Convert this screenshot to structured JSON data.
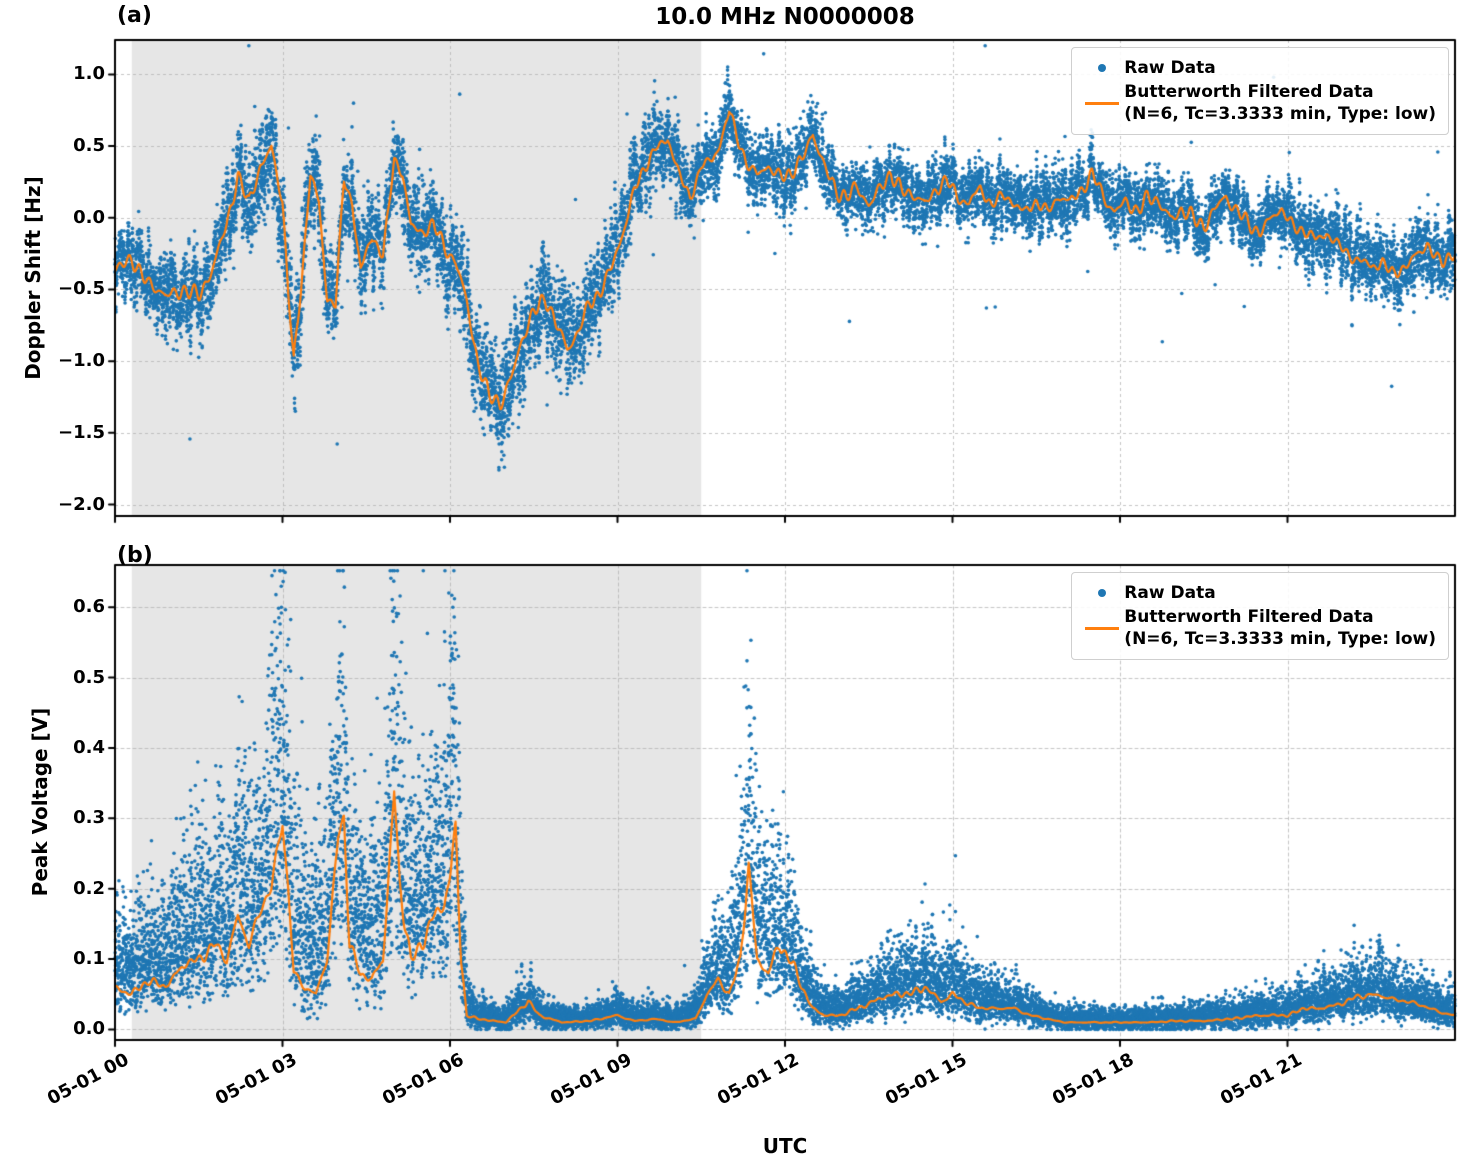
{
  "figure": {
    "title": "10.0 MHz N0000008",
    "xlabel": "UTC",
    "colors": {
      "raw": "#1f77b4",
      "filtered": "#ff7f0e",
      "shade": "#e6e6e6",
      "grid": "#b0b0b0",
      "spine": "#000000"
    }
  },
  "legend": {
    "raw": "Raw Data",
    "filtered_line1": "Butterworth Filtered Data",
    "filtered_line2": "(N=6, Tc=3.3333 min, Type: low)"
  },
  "panels": [
    {
      "corner_label": "(a)",
      "ylabel": "Doppler Shift [Hz]"
    },
    {
      "corner_label": "(b)",
      "ylabel": "Peak Voltage [V]"
    }
  ],
  "chart_data": [
    {
      "type": "scatter",
      "panel": "a",
      "title": "10.0 MHz N0000008",
      "xlabel": "UTC",
      "ylabel": "Doppler Shift [Hz]",
      "xlim_hours": [
        0,
        24
      ],
      "ylim": [
        -2.08,
        1.24
      ],
      "grid": true,
      "legend_position": "upper right",
      "yticks": {
        "values": [
          1.0,
          0.5,
          0.0,
          -0.5,
          -1.0,
          -1.5,
          -2.0
        ],
        "labels": [
          "1.0",
          "0.5",
          "0.0",
          "−0.5",
          "−1.0",
          "−1.5",
          "−2.0"
        ]
      },
      "x_tick_hours": [
        0,
        3,
        6,
        9,
        12,
        15,
        18,
        21
      ],
      "x_tick_labels": [
        "05-01 00",
        "05-01 03",
        "05-01 06",
        "05-01 09",
        "05-01 12",
        "05-01 15",
        "05-01 18",
        "05-01 21"
      ],
      "shaded_region_hours": [
        0.3,
        10.5
      ],
      "series": [
        {
          "name": "Raw Data",
          "type": "scatter",
          "color": "#1f77b4",
          "marker": "dot"
        },
        {
          "name": "Butterworth Filtered Data (N=6, Tc=3.3333 min, Type: low)",
          "type": "line",
          "color": "#ff7f0e",
          "x_hours": [
            0,
            0.3,
            0.6,
            0.9,
            1.2,
            1.5,
            1.8,
            2.0,
            2.2,
            2.4,
            2.6,
            2.8,
            3.0,
            3.1,
            3.2,
            3.35,
            3.5,
            3.65,
            3.8,
            3.95,
            4.1,
            4.25,
            4.4,
            4.6,
            4.8,
            5.0,
            5.15,
            5.3,
            5.5,
            5.7,
            5.9,
            6.1,
            6.3,
            6.5,
            6.7,
            6.9,
            7.1,
            7.3,
            7.5,
            7.7,
            7.9,
            8.1,
            8.3,
            8.5,
            8.7,
            8.9,
            9.1,
            9.3,
            9.5,
            9.7,
            9.9,
            10.1,
            10.3,
            10.5,
            10.7,
            10.9,
            11.0,
            11.1,
            11.3,
            11.5,
            11.7,
            11.9,
            12.1,
            12.3,
            12.5,
            12.7,
            12.9,
            13.1,
            13.3,
            13.5,
            13.7,
            13.9,
            14.1,
            14.3,
            14.5,
            14.7,
            14.9,
            15.1,
            15.3,
            15.5,
            15.7,
            15.9,
            16.1,
            16.3,
            16.5,
            16.7,
            16.9,
            17.1,
            17.3,
            17.5,
            17.7,
            17.9,
            18.1,
            18.3,
            18.5,
            18.7,
            18.9,
            19.1,
            19.3,
            19.5,
            19.7,
            19.9,
            20.1,
            20.3,
            20.5,
            20.7,
            20.9,
            21.1,
            21.3,
            21.5,
            21.7,
            21.9,
            22.1,
            22.3,
            22.5,
            22.7,
            22.9,
            23.1,
            23.3,
            23.5,
            23.7,
            24
          ],
          "y": [
            -0.35,
            -0.3,
            -0.45,
            -0.55,
            -0.5,
            -0.55,
            -0.3,
            -0.05,
            0.3,
            0.1,
            0.35,
            0.5,
            0.1,
            -0.5,
            -1.0,
            -0.4,
            0.3,
            0.1,
            -0.55,
            -0.6,
            0.25,
            0.1,
            -0.35,
            -0.15,
            -0.25,
            0.4,
            0.3,
            -0.05,
            -0.1,
            -0.05,
            -0.2,
            -0.3,
            -0.6,
            -1.0,
            -1.25,
            -1.3,
            -1.1,
            -0.85,
            -0.65,
            -0.55,
            -0.75,
            -0.9,
            -0.8,
            -0.6,
            -0.5,
            -0.35,
            -0.1,
            0.2,
            0.35,
            0.5,
            0.55,
            0.3,
            0.15,
            0.35,
            0.4,
            0.6,
            0.75,
            0.6,
            0.4,
            0.3,
            0.35,
            0.3,
            0.3,
            0.4,
            0.6,
            0.35,
            0.2,
            0.15,
            0.2,
            0.1,
            0.2,
            0.3,
            0.2,
            0.15,
            0.1,
            0.2,
            0.25,
            0.15,
            0.1,
            0.2,
            0.1,
            0.15,
            0.1,
            0.05,
            0.1,
            0.05,
            0.15,
            0.1,
            0.2,
            0.3,
            0.15,
            0.05,
            0.1,
            0.05,
            0.15,
            0.1,
            0.0,
            0.05,
            0.0,
            -0.05,
            0.05,
            0.15,
            0.05,
            -0.05,
            -0.1,
            0.0,
            0.05,
            -0.05,
            -0.1,
            -0.15,
            -0.1,
            -0.2,
            -0.25,
            -0.3,
            -0.35,
            -0.3,
            -0.4,
            -0.35,
            -0.25,
            -0.2,
            -0.3,
            -0.25
          ]
        }
      ],
      "raw_spread": {
        "x_hours": [
          0,
          1,
          2,
          3,
          4,
          5,
          6,
          7,
          8,
          9,
          10,
          11,
          12,
          13,
          14,
          15,
          16,
          17,
          18,
          19,
          20,
          21,
          22,
          23,
          24
        ],
        "std": [
          0.13,
          0.14,
          0.17,
          0.2,
          0.18,
          0.17,
          0.18,
          0.2,
          0.2,
          0.17,
          0.15,
          0.13,
          0.15,
          0.12,
          0.12,
          0.12,
          0.12,
          0.12,
          0.12,
          0.11,
          0.11,
          0.12,
          0.14,
          0.14,
          0.13
        ]
      }
    },
    {
      "type": "scatter",
      "panel": "b",
      "xlabel": "UTC",
      "ylabel": "Peak Voltage [V]",
      "xlim_hours": [
        0,
        24
      ],
      "ylim": [
        -0.015,
        0.66
      ],
      "grid": true,
      "legend_position": "upper right",
      "yticks": {
        "values": [
          0.6,
          0.5,
          0.4,
          0.3,
          0.2,
          0.1,
          0.0
        ],
        "labels": [
          "0.6",
          "0.5",
          "0.4",
          "0.3",
          "0.2",
          "0.1",
          "0.0"
        ]
      },
      "x_tick_hours": [
        0,
        3,
        6,
        9,
        12,
        15,
        18,
        21
      ],
      "x_tick_labels": [
        "05-01 00",
        "05-01 03",
        "05-01 06",
        "05-01 09",
        "05-01 12",
        "05-01 15",
        "05-01 18",
        "05-01 21"
      ],
      "shaded_region_hours": [
        0.3,
        10.5
      ],
      "series": [
        {
          "name": "Raw Data",
          "type": "scatter",
          "color": "#1f77b4",
          "marker": "dot"
        },
        {
          "name": "Butterworth Filtered Data (N=6, Tc=3.3333 min, Type: low)",
          "type": "line",
          "color": "#ff7f0e",
          "x_hours": [
            0,
            0.3,
            0.6,
            0.9,
            1.2,
            1.5,
            1.8,
            2.0,
            2.2,
            2.4,
            2.6,
            2.8,
            3.0,
            3.1,
            3.2,
            3.4,
            3.6,
            3.8,
            4.0,
            4.1,
            4.2,
            4.4,
            4.6,
            4.8,
            5.0,
            5.1,
            5.3,
            5.5,
            5.7,
            5.9,
            6.0,
            6.1,
            6.2,
            6.3,
            6.5,
            7.0,
            7.4,
            7.6,
            8.0,
            8.5,
            9.0,
            9.3,
            9.7,
            10.0,
            10.4,
            10.6,
            10.8,
            11.0,
            11.2,
            11.35,
            11.5,
            11.7,
            11.9,
            12.1,
            12.3,
            12.5,
            12.7,
            13.0,
            13.3,
            13.6,
            13.9,
            14.2,
            14.5,
            14.8,
            15.0,
            15.2,
            15.5,
            15.8,
            16.1,
            16.4,
            16.7,
            17.0,
            17.5,
            18.0,
            18.5,
            19.0,
            19.5,
            20.0,
            20.5,
            21.0,
            21.3,
            21.6,
            21.9,
            22.2,
            22.5,
            22.8,
            23.1,
            23.4,
            23.7,
            24
          ],
          "y": [
            0.06,
            0.05,
            0.07,
            0.06,
            0.09,
            0.1,
            0.12,
            0.1,
            0.16,
            0.12,
            0.17,
            0.2,
            0.3,
            0.2,
            0.08,
            0.06,
            0.05,
            0.1,
            0.28,
            0.3,
            0.12,
            0.08,
            0.07,
            0.1,
            0.34,
            0.2,
            0.1,
            0.12,
            0.16,
            0.18,
            0.22,
            0.28,
            0.1,
            0.02,
            0.015,
            0.01,
            0.04,
            0.02,
            0.01,
            0.012,
            0.02,
            0.012,
            0.015,
            0.01,
            0.015,
            0.05,
            0.07,
            0.05,
            0.1,
            0.23,
            0.1,
            0.08,
            0.12,
            0.1,
            0.06,
            0.03,
            0.02,
            0.02,
            0.03,
            0.04,
            0.05,
            0.05,
            0.06,
            0.04,
            0.05,
            0.04,
            0.03,
            0.03,
            0.03,
            0.02,
            0.015,
            0.01,
            0.01,
            0.01,
            0.01,
            0.012,
            0.012,
            0.015,
            0.02,
            0.02,
            0.03,
            0.03,
            0.035,
            0.045,
            0.05,
            0.045,
            0.04,
            0.035,
            0.025,
            0.02
          ]
        }
      ],
      "raw_spread": {
        "x_hours": [
          0,
          1,
          2,
          3,
          4,
          5,
          6,
          6.4,
          7,
          8,
          9,
          10,
          10.7,
          11.35,
          12,
          12.6,
          13,
          14,
          15,
          16,
          17,
          18,
          19,
          20,
          21,
          22,
          23,
          24
        ],
        "std": [
          0.05,
          0.06,
          0.09,
          0.11,
          0.1,
          0.12,
          0.12,
          0.01,
          0.008,
          0.008,
          0.01,
          0.008,
          0.03,
          0.11,
          0.06,
          0.02,
          0.015,
          0.03,
          0.035,
          0.015,
          0.008,
          0.006,
          0.008,
          0.01,
          0.012,
          0.02,
          0.015,
          0.01
        ]
      }
    }
  ]
}
